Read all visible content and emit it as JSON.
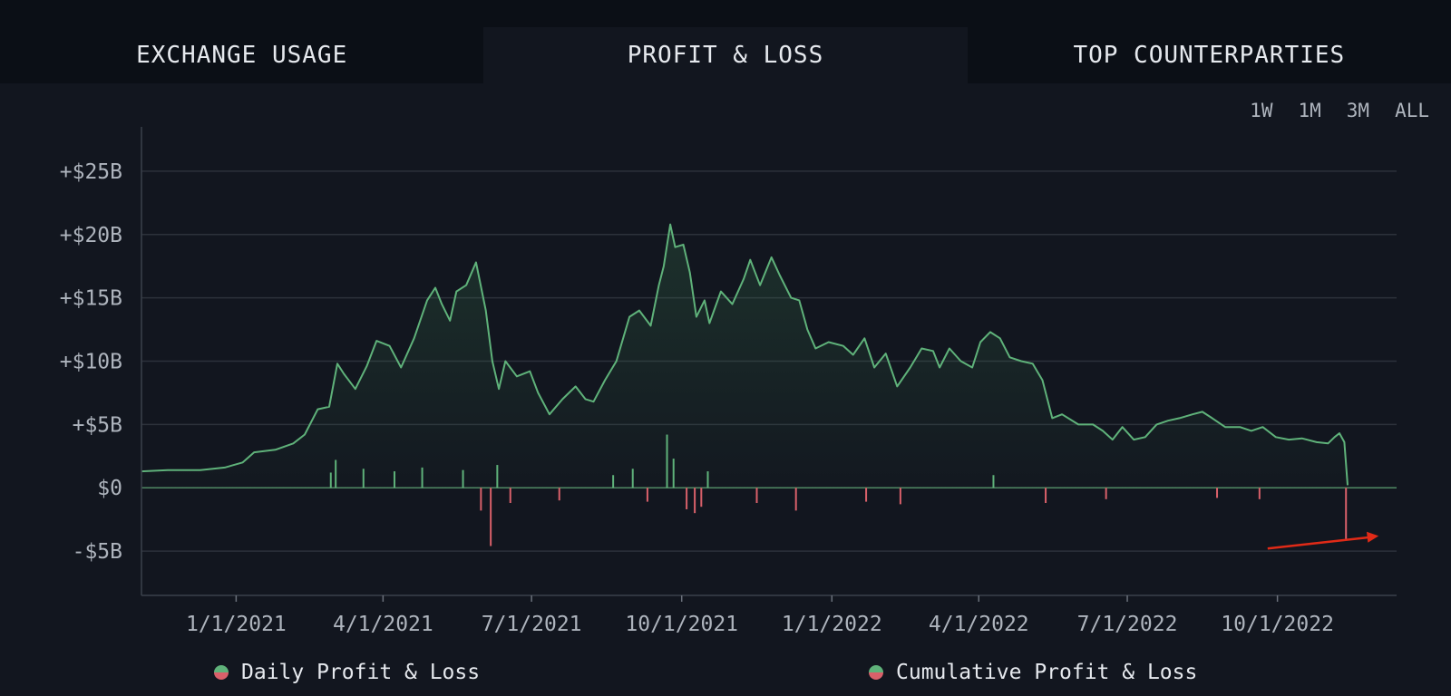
{
  "tabs": [
    {
      "label": "EXCHANGE USAGE",
      "active": false
    },
    {
      "label": "PROFIT & LOSS",
      "active": true
    },
    {
      "label": "TOP COUNTERPARTIES",
      "active": false
    }
  ],
  "ranges": [
    "1W",
    "1M",
    "3M",
    "ALL"
  ],
  "legend": {
    "daily": "Daily Profit & Loss",
    "cumulative": "Cumulative Profit & Loss"
  },
  "colors": {
    "positive": "#5fb27a",
    "negative": "#d9606a",
    "grid": "#2c313b",
    "arrow": "#e02a17"
  },
  "chart_data": {
    "type": "area",
    "title": "",
    "xlabel": "",
    "ylabel": "",
    "x_range": [
      "2020-11-04",
      "2022-12-13"
    ],
    "ylim": [
      -8.5,
      28.5
    ],
    "yticks": [
      {
        "v": 25,
        "label": "+$25B"
      },
      {
        "v": 20,
        "label": "+$20B"
      },
      {
        "v": 15,
        "label": "+$15B"
      },
      {
        "v": 10,
        "label": "+$10B"
      },
      {
        "v": 5,
        "label": "+$5B"
      },
      {
        "v": 0,
        "label": "$0"
      },
      {
        "v": -5,
        "label": "-$5B"
      }
    ],
    "xticks": [
      {
        "date": "2021-01-01",
        "label": "1/1/2021"
      },
      {
        "date": "2021-04-01",
        "label": "4/1/2021"
      },
      {
        "date": "2021-07-01",
        "label": "7/1/2021"
      },
      {
        "date": "2021-10-01",
        "label": "10/1/2021"
      },
      {
        "date": "2022-01-01",
        "label": "1/1/2022"
      },
      {
        "date": "2022-04-01",
        "label": "4/1/2022"
      },
      {
        "date": "2022-07-01",
        "label": "7/1/2022"
      },
      {
        "date": "2022-10-01",
        "label": "10/1/2022"
      }
    ],
    "series": [
      {
        "name": "Cumulative Profit & Loss",
        "type": "area",
        "points": [
          [
            "2020-11-04",
            1.3
          ],
          [
            "2020-11-20",
            1.4
          ],
          [
            "2020-12-10",
            1.4
          ],
          [
            "2020-12-25",
            1.6
          ],
          [
            "2021-01-05",
            2.0
          ],
          [
            "2021-01-12",
            2.8
          ],
          [
            "2021-01-25",
            3.0
          ],
          [
            "2021-02-05",
            3.5
          ],
          [
            "2021-02-12",
            4.2
          ],
          [
            "2021-02-20",
            6.2
          ],
          [
            "2021-02-27",
            6.4
          ],
          [
            "2021-03-04",
            9.8
          ],
          [
            "2021-03-08",
            9.0
          ],
          [
            "2021-03-15",
            7.8
          ],
          [
            "2021-03-22",
            9.6
          ],
          [
            "2021-03-28",
            11.6
          ],
          [
            "2021-04-05",
            11.2
          ],
          [
            "2021-04-12",
            9.5
          ],
          [
            "2021-04-20",
            11.8
          ],
          [
            "2021-04-28",
            14.8
          ],
          [
            "2021-05-03",
            15.8
          ],
          [
            "2021-05-07",
            14.5
          ],
          [
            "2021-05-12",
            13.2
          ],
          [
            "2021-05-16",
            15.5
          ],
          [
            "2021-05-22",
            16.0
          ],
          [
            "2021-05-28",
            17.8
          ],
          [
            "2021-06-03",
            14.0
          ],
          [
            "2021-06-07",
            10.0
          ],
          [
            "2021-06-11",
            7.8
          ],
          [
            "2021-06-15",
            10.0
          ],
          [
            "2021-06-22",
            8.8
          ],
          [
            "2021-06-30",
            9.2
          ],
          [
            "2021-07-05",
            7.5
          ],
          [
            "2021-07-12",
            5.8
          ],
          [
            "2021-07-20",
            7.0
          ],
          [
            "2021-07-28",
            8.0
          ],
          [
            "2021-08-03",
            7.0
          ],
          [
            "2021-08-08",
            6.8
          ],
          [
            "2021-08-15",
            8.5
          ],
          [
            "2021-08-22",
            10.0
          ],
          [
            "2021-08-30",
            13.5
          ],
          [
            "2021-09-05",
            14.0
          ],
          [
            "2021-09-12",
            12.8
          ],
          [
            "2021-09-17",
            16.0
          ],
          [
            "2021-09-20",
            17.5
          ],
          [
            "2021-09-24",
            20.8
          ],
          [
            "2021-09-27",
            19.0
          ],
          [
            "2021-10-02",
            19.2
          ],
          [
            "2021-10-06",
            17.0
          ],
          [
            "2021-10-10",
            13.5
          ],
          [
            "2021-10-15",
            14.8
          ],
          [
            "2021-10-18",
            13.0
          ],
          [
            "2021-10-25",
            15.5
          ],
          [
            "2021-11-01",
            14.5
          ],
          [
            "2021-11-08",
            16.5
          ],
          [
            "2021-11-12",
            18.0
          ],
          [
            "2021-11-18",
            16.0
          ],
          [
            "2021-11-25",
            18.2
          ],
          [
            "2021-11-30",
            16.8
          ],
          [
            "2021-12-07",
            15.0
          ],
          [
            "2021-12-12",
            14.8
          ],
          [
            "2021-12-17",
            12.5
          ],
          [
            "2021-12-22",
            11.0
          ],
          [
            "2021-12-30",
            11.5
          ],
          [
            "2022-01-08",
            11.2
          ],
          [
            "2022-01-14",
            10.5
          ],
          [
            "2022-01-21",
            11.8
          ],
          [
            "2022-01-27",
            9.5
          ],
          [
            "2022-02-03",
            10.6
          ],
          [
            "2022-02-10",
            8.0
          ],
          [
            "2022-02-18",
            9.5
          ],
          [
            "2022-02-25",
            11.0
          ],
          [
            "2022-03-04",
            10.8
          ],
          [
            "2022-03-08",
            9.5
          ],
          [
            "2022-03-14",
            11.0
          ],
          [
            "2022-03-21",
            10.0
          ],
          [
            "2022-03-28",
            9.5
          ],
          [
            "2022-04-02",
            11.5
          ],
          [
            "2022-04-08",
            12.3
          ],
          [
            "2022-04-14",
            11.8
          ],
          [
            "2022-04-20",
            10.3
          ],
          [
            "2022-04-27",
            10.0
          ],
          [
            "2022-05-04",
            9.8
          ],
          [
            "2022-05-10",
            8.5
          ],
          [
            "2022-05-16",
            5.5
          ],
          [
            "2022-05-22",
            5.8
          ],
          [
            "2022-06-01",
            5.0
          ],
          [
            "2022-06-10",
            5.0
          ],
          [
            "2022-06-16",
            4.5
          ],
          [
            "2022-06-22",
            3.8
          ],
          [
            "2022-06-28",
            4.8
          ],
          [
            "2022-07-05",
            3.8
          ],
          [
            "2022-07-12",
            4.0
          ],
          [
            "2022-07-19",
            5.0
          ],
          [
            "2022-07-26",
            5.3
          ],
          [
            "2022-08-02",
            5.5
          ],
          [
            "2022-08-10",
            5.8
          ],
          [
            "2022-08-16",
            6.0
          ],
          [
            "2022-08-22",
            5.5
          ],
          [
            "2022-08-30",
            4.8
          ],
          [
            "2022-09-08",
            4.8
          ],
          [
            "2022-09-15",
            4.5
          ],
          [
            "2022-09-22",
            4.8
          ],
          [
            "2022-09-30",
            4.0
          ],
          [
            "2022-10-08",
            3.8
          ],
          [
            "2022-10-16",
            3.9
          ],
          [
            "2022-10-25",
            3.6
          ],
          [
            "2022-11-01",
            3.5
          ],
          [
            "2022-11-05",
            4.0
          ],
          [
            "2022-11-08",
            4.3
          ],
          [
            "2022-11-11",
            3.6
          ],
          [
            "2022-11-13",
            0.2
          ]
        ]
      },
      {
        "name": "Daily Profit & Loss",
        "type": "bar",
        "points": [
          [
            "2021-02-28",
            1.2
          ],
          [
            "2021-03-03",
            2.2
          ],
          [
            "2021-03-20",
            1.5
          ],
          [
            "2021-04-08",
            1.3
          ],
          [
            "2021-04-25",
            1.6
          ],
          [
            "2021-05-20",
            1.4
          ],
          [
            "2021-05-31",
            -1.8
          ],
          [
            "2021-06-06",
            -4.6
          ],
          [
            "2021-06-10",
            1.8
          ],
          [
            "2021-06-18",
            -1.2
          ],
          [
            "2021-07-18",
            -1.0
          ],
          [
            "2021-08-20",
            1.0
          ],
          [
            "2021-09-01",
            1.5
          ],
          [
            "2021-09-10",
            -1.1
          ],
          [
            "2021-09-22",
            4.2
          ],
          [
            "2021-09-26",
            2.3
          ],
          [
            "2021-10-04",
            -1.7
          ],
          [
            "2021-10-09",
            -2.0
          ],
          [
            "2021-10-13",
            -1.5
          ],
          [
            "2021-10-17",
            1.3
          ],
          [
            "2021-11-16",
            -1.2
          ],
          [
            "2021-12-10",
            -1.8
          ],
          [
            "2022-01-22",
            -1.1
          ],
          [
            "2022-02-12",
            -1.3
          ],
          [
            "2022-04-10",
            1.0
          ],
          [
            "2022-05-12",
            -1.2
          ],
          [
            "2022-06-18",
            -0.9
          ],
          [
            "2022-08-25",
            -0.8
          ],
          [
            "2022-09-20",
            -0.9
          ],
          [
            "2022-11-12",
            -4.1
          ]
        ]
      }
    ],
    "annotations": [
      {
        "type": "arrow",
        "from": [
          "2022-09-25",
          -4.8
        ],
        "to": [
          "2022-12-02",
          -3.8
        ]
      }
    ],
    "grid": true,
    "legend_position": "bottom"
  }
}
